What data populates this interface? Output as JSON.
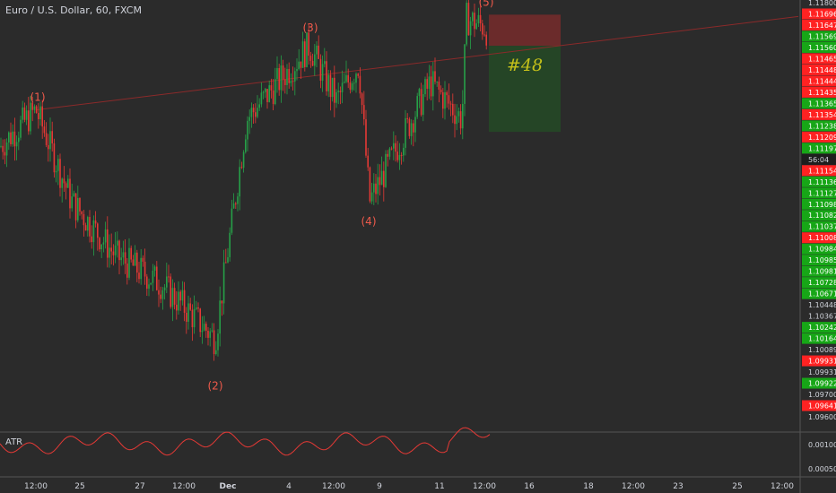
{
  "chart_data": {
    "type": "candlestick",
    "title": "Euro / U.S. Dollar, 60, FXCM",
    "y_axis_labels": [
      "1.11800",
      "1.11696",
      "1.11647",
      "1.11569",
      "1.11560",
      "1.11465",
      "1.11448",
      "1.11444",
      "1.11435",
      "1.11365",
      "1.11354",
      "1.11238",
      "1.11209",
      "1.11197",
      "56:04",
      "1.11154",
      "1.11136",
      "1.11127",
      "1.11098",
      "1.11082",
      "1.11037",
      "1.11008",
      "1.10984",
      "1.10985",
      "1.10981",
      "1.10728",
      "1.10671",
      "1.10448",
      "1.10367",
      "1.10242",
      "1.10164",
      "1.10089",
      "1.09931",
      "1.09931",
      "1.09922",
      "1.09700",
      "1.09641",
      "1.09600"
    ],
    "x_tick_labels": [
      "12:00",
      "25",
      "27",
      "12:00",
      "Dec",
      "4",
      "12:00",
      "9",
      "11",
      "12:00",
      "16",
      "18",
      "12:00",
      "23",
      "25",
      "12:00"
    ],
    "wave_labels": [
      "(1)",
      "(2)",
      "(3)",
      "(4)",
      "(5)"
    ],
    "wave_points": [
      1.1125,
      1.0985,
      1.1163,
      1.1075,
      1.1177
    ],
    "trade": {
      "label": "#48",
      "entry": 1.116,
      "stop": 1.1177,
      "target": 1.1113,
      "direction": "short"
    },
    "trendline": {
      "from": 1.1125,
      "to": 1.1176
    },
    "indicator": {
      "name": "ATR",
      "y_labels": [
        "0.00100",
        "0.00050"
      ]
    },
    "price_range": [
      1.0955,
      1.1185
    ],
    "grid": false
  },
  "colors": {
    "background": "#2b2b2b",
    "up": "#26a048",
    "down": "#e53935",
    "wave_label": "#f05a4b",
    "axis_text": "#d1d4dc",
    "red_tag": "#ff2222",
    "green_tag": "#17a617",
    "gray_tag": "#2b2b2b",
    "stop_zone": "#6b2b2b",
    "target_zone": "#254526",
    "trade_label": "#c5c11a",
    "atr_line": "#e53935"
  }
}
